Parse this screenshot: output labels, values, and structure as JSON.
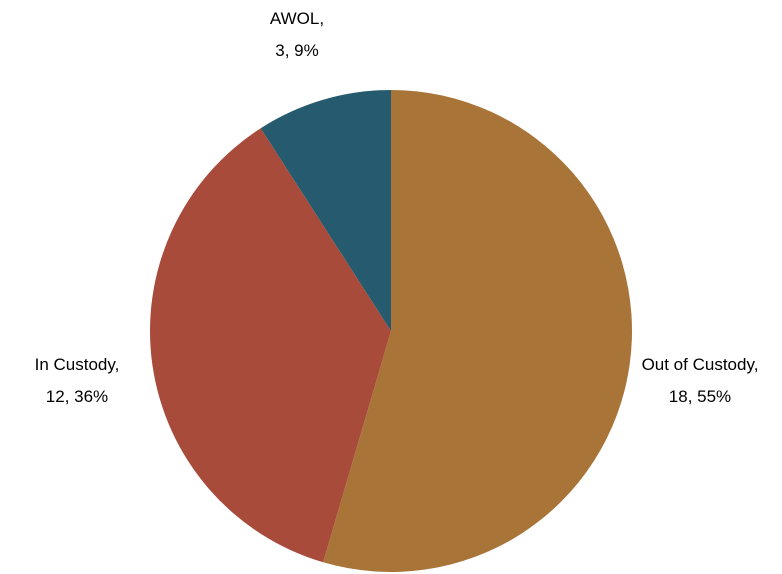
{
  "chart_data": {
    "type": "pie",
    "title": "",
    "slices": [
      {
        "label": "Out of Custody,",
        "value": 18,
        "percent": "55%",
        "value_text": "18, 55%",
        "color": "#A97438"
      },
      {
        "label": "In Custody,",
        "value": 12,
        "percent": "36%",
        "value_text": "12, 36%",
        "color": "#A84B3A"
      },
      {
        "label": "AWOL,",
        "value": 3,
        "percent": "9%",
        "value_text": "3, 9%",
        "color": "#265A6E"
      }
    ]
  }
}
